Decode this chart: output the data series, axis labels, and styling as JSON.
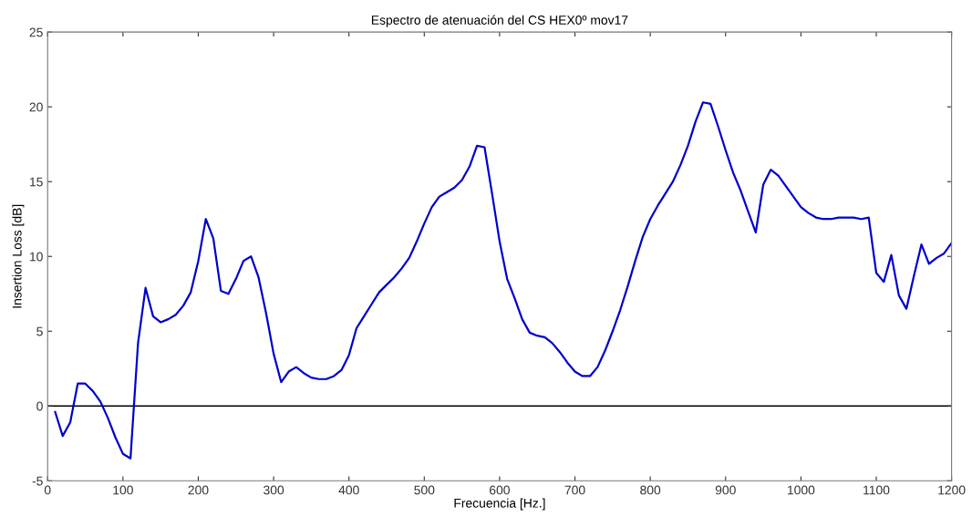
{
  "chart_data": {
    "type": "line",
    "title": "Espectro de atenuación del CS HEX0º mov17",
    "xlabel": "Frecuencia [Hz.]",
    "ylabel": "Insertion Loss [dB]",
    "x": [
      10,
      20,
      30,
      40,
      50,
      60,
      70,
      80,
      90,
      100,
      110,
      120,
      130,
      140,
      150,
      160,
      170,
      180,
      190,
      200,
      210,
      220,
      230,
      240,
      250,
      260,
      270,
      280,
      290,
      300,
      310,
      320,
      330,
      340,
      350,
      360,
      370,
      380,
      390,
      400,
      410,
      420,
      430,
      440,
      450,
      460,
      470,
      480,
      490,
      500,
      510,
      520,
      530,
      540,
      550,
      560,
      570,
      580,
      590,
      600,
      610,
      620,
      630,
      640,
      650,
      660,
      670,
      680,
      690,
      700,
      710,
      720,
      730,
      740,
      750,
      760,
      770,
      780,
      790,
      800,
      810,
      820,
      830,
      840,
      850,
      860,
      870,
      880,
      890,
      900,
      910,
      920,
      930,
      940,
      950,
      960,
      970,
      980,
      990,
      1000,
      1010,
      1020,
      1030,
      1040,
      1050,
      1060,
      1070,
      1080,
      1090,
      1100,
      1110,
      1120,
      1130,
      1140,
      1150,
      1160,
      1170,
      1180,
      1190,
      1200
    ],
    "series": [
      {
        "color": "#0000cc",
        "values": [
          -0.4,
          -2.0,
          -1.1,
          1.5,
          1.5,
          1.0,
          0.3,
          -0.8,
          -2.1,
          -3.2,
          -3.5,
          4.2,
          7.9,
          6.0,
          5.6,
          5.8,
          6.1,
          6.7,
          7.6,
          9.7,
          12.5,
          11.2,
          7.7,
          7.5,
          8.5,
          9.7,
          10.0,
          8.6,
          6.2,
          3.5,
          1.6,
          2.3,
          2.6,
          2.2,
          1.9,
          1.8,
          1.8,
          2.0,
          2.4,
          3.4,
          5.2,
          6.0,
          6.8,
          7.6,
          8.1,
          8.6,
          9.2,
          9.9,
          11.0,
          12.2,
          13.3,
          14.0,
          14.3,
          14.6,
          15.1,
          16.0,
          17.4,
          17.3,
          14.2,
          11.0,
          8.5,
          7.2,
          5.8,
          4.9,
          4.7,
          4.6,
          4.2,
          3.6,
          2.9,
          2.3,
          2.0,
          2.0,
          2.6,
          3.7,
          5.0,
          6.4,
          8.0,
          9.7,
          11.3,
          12.5,
          13.4,
          14.2,
          15.0,
          16.1,
          17.4,
          19.0,
          20.3,
          20.2,
          18.7,
          17.1,
          15.6,
          14.4,
          13.0,
          11.6,
          14.8,
          15.8,
          15.4,
          14.7,
          14.0,
          13.3,
          12.9,
          12.6,
          12.5,
          12.5,
          12.6,
          12.6,
          12.6,
          12.5,
          12.6,
          8.9,
          8.3,
          10.1,
          7.4,
          6.5,
          8.7,
          10.8,
          9.5,
          9.9,
          10.2,
          10.9
        ]
      }
    ],
    "xlim": [
      0,
      1200
    ],
    "xticks": [
      0,
      100,
      200,
      300,
      400,
      500,
      600,
      700,
      800,
      900,
      1000,
      1100,
      1200
    ],
    "ylim": [
      -5,
      25
    ],
    "yticks": [
      -5,
      0,
      5,
      10,
      15,
      20,
      25
    ],
    "ref_lines": [
      {
        "axis": "y",
        "value": 0,
        "color": "#000000",
        "line_style": "solid"
      }
    ],
    "grid": false,
    "legend": false,
    "marker": "none",
    "line_style": "solid"
  }
}
